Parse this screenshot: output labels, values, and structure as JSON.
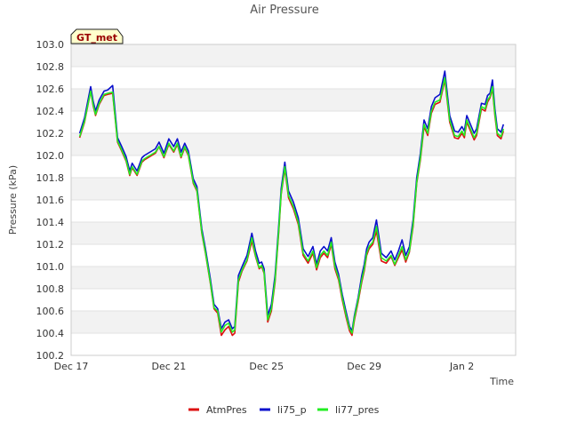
{
  "chart_data": {
    "type": "line",
    "title": "Air Pressure",
    "xlabel": "Time",
    "ylabel": "Pressure (kPa)",
    "badge": "GT_met",
    "xlim": [
      0,
      18.2
    ],
    "ylim": [
      100.2,
      103.0
    ],
    "x_ticks": [
      {
        "value": 0,
        "label": "Dec 17"
      },
      {
        "value": 4,
        "label": "Dec 21"
      },
      {
        "value": 8,
        "label": "Dec 25"
      },
      {
        "value": 12,
        "label": "Dec 29"
      },
      {
        "value": 16,
        "label": "Jan 2"
      }
    ],
    "y_ticks": [
      {
        "value": 100.2,
        "label": "100.2"
      },
      {
        "value": 100.4,
        "label": "100.4"
      },
      {
        "value": 100.6,
        "label": "100.6"
      },
      {
        "value": 100.8,
        "label": "100.8"
      },
      {
        "value": 101.0,
        "label": "101.0"
      },
      {
        "value": 101.2,
        "label": "101.2"
      },
      {
        "value": 101.4,
        "label": "101.4"
      },
      {
        "value": 101.6,
        "label": "101.6"
      },
      {
        "value": 101.8,
        "label": "101.8"
      },
      {
        "value": 102.0,
        "label": "102.0"
      },
      {
        "value": 102.2,
        "label": "102.2"
      },
      {
        "value": 102.4,
        "label": "102.4"
      },
      {
        "value": 102.6,
        "label": "102.6"
      },
      {
        "value": 102.8,
        "label": "102.8"
      },
      {
        "value": 103.0,
        "label": "103.0"
      }
    ],
    "x": [
      0.35,
      0.55,
      0.8,
      0.9,
      1.0,
      1.15,
      1.35,
      1.5,
      1.7,
      1.9,
      2.05,
      2.25,
      2.4,
      2.5,
      2.7,
      2.9,
      3.0,
      3.15,
      3.3,
      3.45,
      3.6,
      3.8,
      4.0,
      4.2,
      4.35,
      4.5,
      4.65,
      4.8,
      5.0,
      5.15,
      5.35,
      5.5,
      5.7,
      5.85,
      6.0,
      6.15,
      6.3,
      6.45,
      6.6,
      6.7,
      6.85,
      7.0,
      7.2,
      7.4,
      7.55,
      7.7,
      7.8,
      7.9,
      8.05,
      8.2,
      8.35,
      8.5,
      8.6,
      8.75,
      8.9,
      9.1,
      9.3,
      9.5,
      9.7,
      9.9,
      10.05,
      10.2,
      10.35,
      10.5,
      10.65,
      10.8,
      10.95,
      11.1,
      11.25,
      11.4,
      11.5,
      11.6,
      11.75,
      11.9,
      12.0,
      12.1,
      12.2,
      12.35,
      12.5,
      12.7,
      12.9,
      13.1,
      13.25,
      13.4,
      13.55,
      13.7,
      13.85,
      14.0,
      14.15,
      14.3,
      14.45,
      14.6,
      14.75,
      14.9,
      15.1,
      15.3,
      15.5,
      15.7,
      15.85,
      16.0,
      16.1,
      16.2,
      16.35,
      16.5,
      16.6,
      16.8,
      16.95,
      17.05,
      17.15,
      17.25,
      17.35,
      17.45,
      17.6,
      17.7
    ],
    "series": [
      {
        "name": "AtmPres",
        "color": "#dd1111",
        "values": [
          102.16,
          102.3,
          102.58,
          102.45,
          102.36,
          102.46,
          102.54,
          102.55,
          102.56,
          102.12,
          102.05,
          101.95,
          101.82,
          101.89,
          101.82,
          101.94,
          101.96,
          101.98,
          102.0,
          102.02,
          102.08,
          101.98,
          102.1,
          102.03,
          102.1,
          101.98,
          102.07,
          102.0,
          101.75,
          101.68,
          101.3,
          101.12,
          100.85,
          100.62,
          100.58,
          100.38,
          100.43,
          100.46,
          100.38,
          100.4,
          100.86,
          100.96,
          101.05,
          101.23,
          101.09,
          100.98,
          101.0,
          100.94,
          100.5,
          100.6,
          100.86,
          101.31,
          101.65,
          101.88,
          101.62,
          101.52,
          101.38,
          101.1,
          101.03,
          101.12,
          100.97,
          101.08,
          101.12,
          101.08,
          101.2,
          100.98,
          100.88,
          100.7,
          100.55,
          100.42,
          100.38,
          100.52,
          100.68,
          100.86,
          100.96,
          101.1,
          101.16,
          101.2,
          101.32,
          101.05,
          101.03,
          101.09,
          101.01,
          101.08,
          101.15,
          101.04,
          101.13,
          101.36,
          101.75,
          101.96,
          102.26,
          102.18,
          102.38,
          102.46,
          102.48,
          102.68,
          102.3,
          102.16,
          102.15,
          102.2,
          102.16,
          102.3,
          102.22,
          102.14,
          102.18,
          102.42,
          102.4,
          102.48,
          102.52,
          102.6,
          102.36,
          102.18,
          102.15,
          102.22
        ]
      },
      {
        "name": "li75_p",
        "color": "#0a10cc",
        "values": [
          102.2,
          102.34,
          102.62,
          102.49,
          102.4,
          102.5,
          102.58,
          102.59,
          102.63,
          102.16,
          102.09,
          101.99,
          101.86,
          101.93,
          101.86,
          101.98,
          102.0,
          102.02,
          102.04,
          102.06,
          102.12,
          102.02,
          102.15,
          102.08,
          102.15,
          102.03,
          102.11,
          102.04,
          101.79,
          101.72,
          101.34,
          101.16,
          100.89,
          100.66,
          100.62,
          100.44,
          100.5,
          100.52,
          100.44,
          100.46,
          100.92,
          101.0,
          101.1,
          101.3,
          101.14,
          101.03,
          101.04,
          100.98,
          100.56,
          100.66,
          100.92,
          101.37,
          101.7,
          101.94,
          101.68,
          101.58,
          101.44,
          101.16,
          101.09,
          101.18,
          101.02,
          101.14,
          101.18,
          101.14,
          101.26,
          101.04,
          100.93,
          100.75,
          100.6,
          100.46,
          100.42,
          100.56,
          100.72,
          100.92,
          101.02,
          101.16,
          101.22,
          101.26,
          101.42,
          101.12,
          101.08,
          101.14,
          101.06,
          101.14,
          101.24,
          101.1,
          101.18,
          101.42,
          101.8,
          102.02,
          102.32,
          102.24,
          102.44,
          102.52,
          102.55,
          102.76,
          102.36,
          102.22,
          102.21,
          102.26,
          102.22,
          102.36,
          102.28,
          102.2,
          102.24,
          102.47,
          102.46,
          102.54,
          102.56,
          102.68,
          102.42,
          102.24,
          102.21,
          102.28
        ]
      },
      {
        "name": "li77_pres",
        "color": "#22ee22",
        "values": [
          102.17,
          102.31,
          102.58,
          102.46,
          102.37,
          102.47,
          102.55,
          102.56,
          102.57,
          102.13,
          102.06,
          101.96,
          101.83,
          101.9,
          101.83,
          101.95,
          101.97,
          101.99,
          102.01,
          102.03,
          102.08,
          101.99,
          102.11,
          102.04,
          102.11,
          101.99,
          102.08,
          102.01,
          101.76,
          101.69,
          101.31,
          101.13,
          100.86,
          100.63,
          100.6,
          100.41,
          100.47,
          100.49,
          100.41,
          100.43,
          100.88,
          100.97,
          101.06,
          101.26,
          101.1,
          100.99,
          101.01,
          100.95,
          100.52,
          100.62,
          100.88,
          101.33,
          101.66,
          101.9,
          101.64,
          101.54,
          101.4,
          101.12,
          101.05,
          101.14,
          100.99,
          101.1,
          101.14,
          101.1,
          101.22,
          101.0,
          100.9,
          100.72,
          100.57,
          100.44,
          100.4,
          100.54,
          100.7,
          100.88,
          100.98,
          101.12,
          101.18,
          101.22,
          101.36,
          101.08,
          101.05,
          101.1,
          101.02,
          101.1,
          101.18,
          101.06,
          101.14,
          101.38,
          101.76,
          101.98,
          102.28,
          102.2,
          102.4,
          102.48,
          102.5,
          102.7,
          102.32,
          102.18,
          102.17,
          102.22,
          102.18,
          102.32,
          102.24,
          102.16,
          102.2,
          102.44,
          102.42,
          102.5,
          102.53,
          102.62,
          102.38,
          102.2,
          102.17,
          102.24
        ]
      }
    ],
    "legend_position": "bottom-center",
    "grid": true
  }
}
